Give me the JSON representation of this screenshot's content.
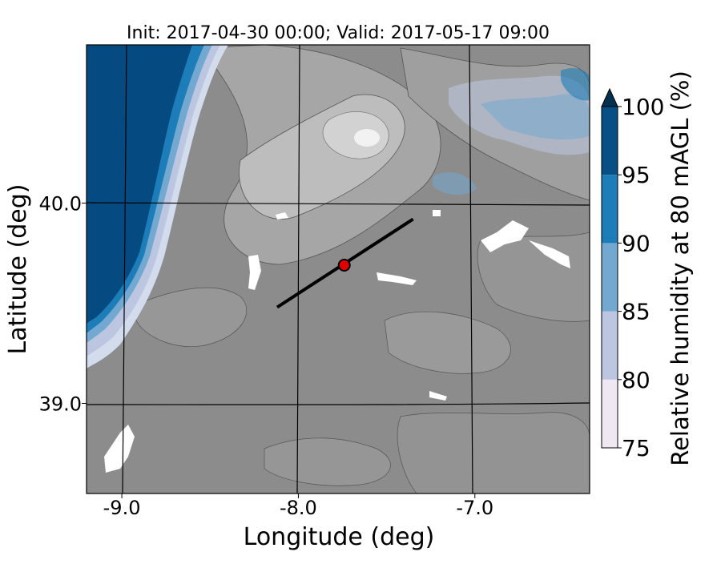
{
  "title": "Init: 2017-04-30 00:00; Valid: 2017-05-17 09:00",
  "x_axis": {
    "label": "Longitude (deg)",
    "range": [
      -9.2,
      -6.35
    ],
    "ticks": [
      {
        "value": -9.0,
        "label": "-9.0"
      },
      {
        "value": -8.0,
        "label": "-8.0"
      },
      {
        "value": -7.0,
        "label": "-7.0"
      }
    ]
  },
  "y_axis": {
    "label": "Latitude (deg)",
    "range": [
      38.55,
      40.79
    ],
    "ticks": [
      {
        "value": 40.0,
        "label": "40.0"
      },
      {
        "value": 39.0,
        "label": "39.0"
      }
    ]
  },
  "colorbar": {
    "label": "Relative humidity at 80 mAGL (%)",
    "levels": [
      {
        "from": 75,
        "to": 80,
        "color": "#efe8f2"
      },
      {
        "from": 80,
        "to": 85,
        "color": "#bdc6e0"
      },
      {
        "from": 85,
        "to": 90,
        "color": "#73a8d0"
      },
      {
        "from": 90,
        "to": 95,
        "color": "#1c7db8"
      },
      {
        "from": 95,
        "to": 100,
        "color": "#074f84"
      }
    ],
    "extend_color": "#06304f",
    "tick_labels": [
      "75",
      "80",
      "85",
      "90",
      "95",
      "100"
    ]
  },
  "map": {
    "ocean_color": "#054a80",
    "terrain_base_color": "#8c8c8c",
    "grid_color": "#000000"
  },
  "cross_section": {
    "start": {
      "lon": -8.12,
      "lat": 39.48
    },
    "end": {
      "lon": -7.35,
      "lat": 39.92
    },
    "line_color": "#000000"
  },
  "marker": {
    "lon": -7.74,
    "lat": 39.69,
    "color": "#e00000"
  }
}
